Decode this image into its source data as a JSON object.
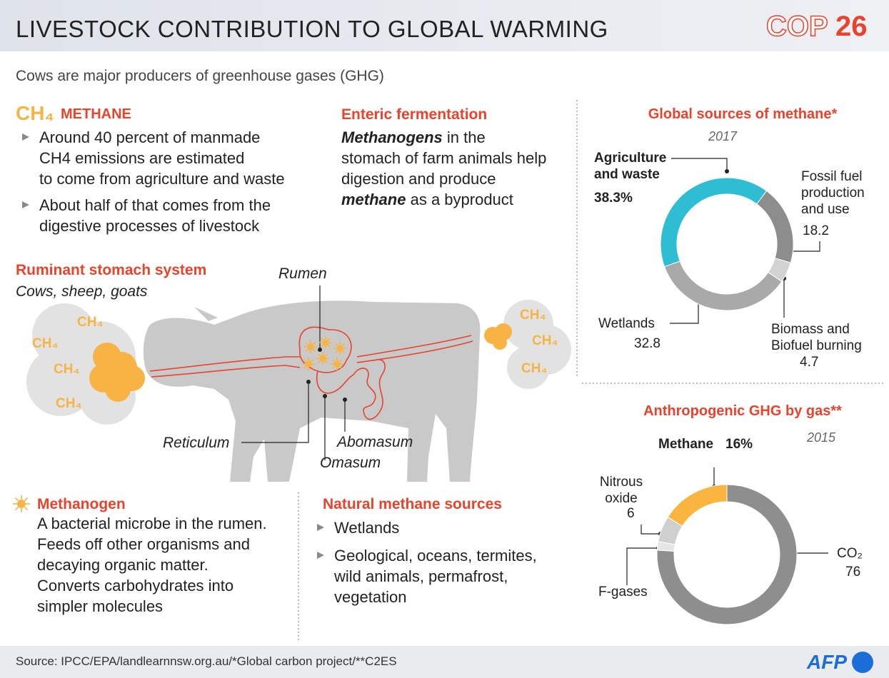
{
  "header": {
    "title": "LIVESTOCK CONTRIBUTION TO GLOBAL WARMING",
    "logo_left": "COP",
    "logo_right": "26"
  },
  "subtitle": "Cows are major producers of greenhouse gases (GHG)",
  "methane": {
    "formula": "CH₄",
    "title": "METHANE",
    "bullets": [
      [
        "Around 40 percent of manmade",
        "CH4 emissions are estimated",
        "to come from agriculture and waste"
      ],
      [
        "About half of that comes from the",
        "digestive processes of livestock"
      ]
    ]
  },
  "enteric": {
    "title": "Enteric fermentation",
    "lines": [
      [
        {
          "text": "Methanogens",
          "italic": true
        },
        {
          "text": " in the"
        }
      ],
      [
        {
          "text": "stomach of farm animals help"
        }
      ],
      [
        {
          "text": "digestion and produce"
        }
      ],
      [
        {
          "text": "methane",
          "italic": true
        },
        {
          "text": " as a byproduct"
        }
      ]
    ]
  },
  "stomach": {
    "title": "Ruminant stomach system",
    "subtitle": "Cows, sheep, goats",
    "gas_label": "CH₄",
    "parts": [
      "Rumen",
      "Reticulum",
      "Omasum",
      "Abomasum"
    ]
  },
  "methanogen": {
    "title": "Methanogen",
    "lines": [
      "A bacterial microbe in the rumen.",
      "Feeds off other organisms and",
      "decaying organic matter.",
      "Converts carbohydrates into",
      "simpler molecules"
    ]
  },
  "natural": {
    "title": "Natural methane sources",
    "bullets": [
      [
        "Wetlands"
      ],
      [
        "Geological, oceans, termites,",
        "wild animals, permafrost,",
        "vegetation"
      ]
    ]
  },
  "chart_data": [
    {
      "type": "pie",
      "donut": true,
      "title": "Global sources of methane*",
      "subtitle": "2017",
      "categories": [
        "Agriculture and waste",
        "Fossil fuel production and use",
        "Biomass and Biofuel burning",
        "Wetlands"
      ],
      "values": [
        38.3,
        18.2,
        4.7,
        32.8
      ],
      "value_labels": [
        "38.3%",
        "18.2",
        "4.7",
        "32.8"
      ],
      "colors": [
        "#2fbdd3",
        "#8d8d8d",
        "#d2d2d2",
        "#a9a9a9"
      ]
    },
    {
      "type": "pie",
      "donut": true,
      "title": "Anthropogenic GHG by gas**",
      "subtitle": "2015",
      "categories": [
        "CO₂",
        "F-gases",
        "Nitrous oxide",
        "Methane"
      ],
      "values": [
        76,
        2,
        6,
        16
      ],
      "value_labels": [
        "76",
        null,
        "6",
        "16%"
      ],
      "colors": [
        "#8e8e8e",
        "#e6e6e6",
        "#cfcfcf",
        "#f9b540"
      ]
    }
  ],
  "footer": {
    "source": "Source: IPCC/EPA/landlearnnsw.org.au/*Global carbon project/**C2ES",
    "logo": "AFP"
  }
}
